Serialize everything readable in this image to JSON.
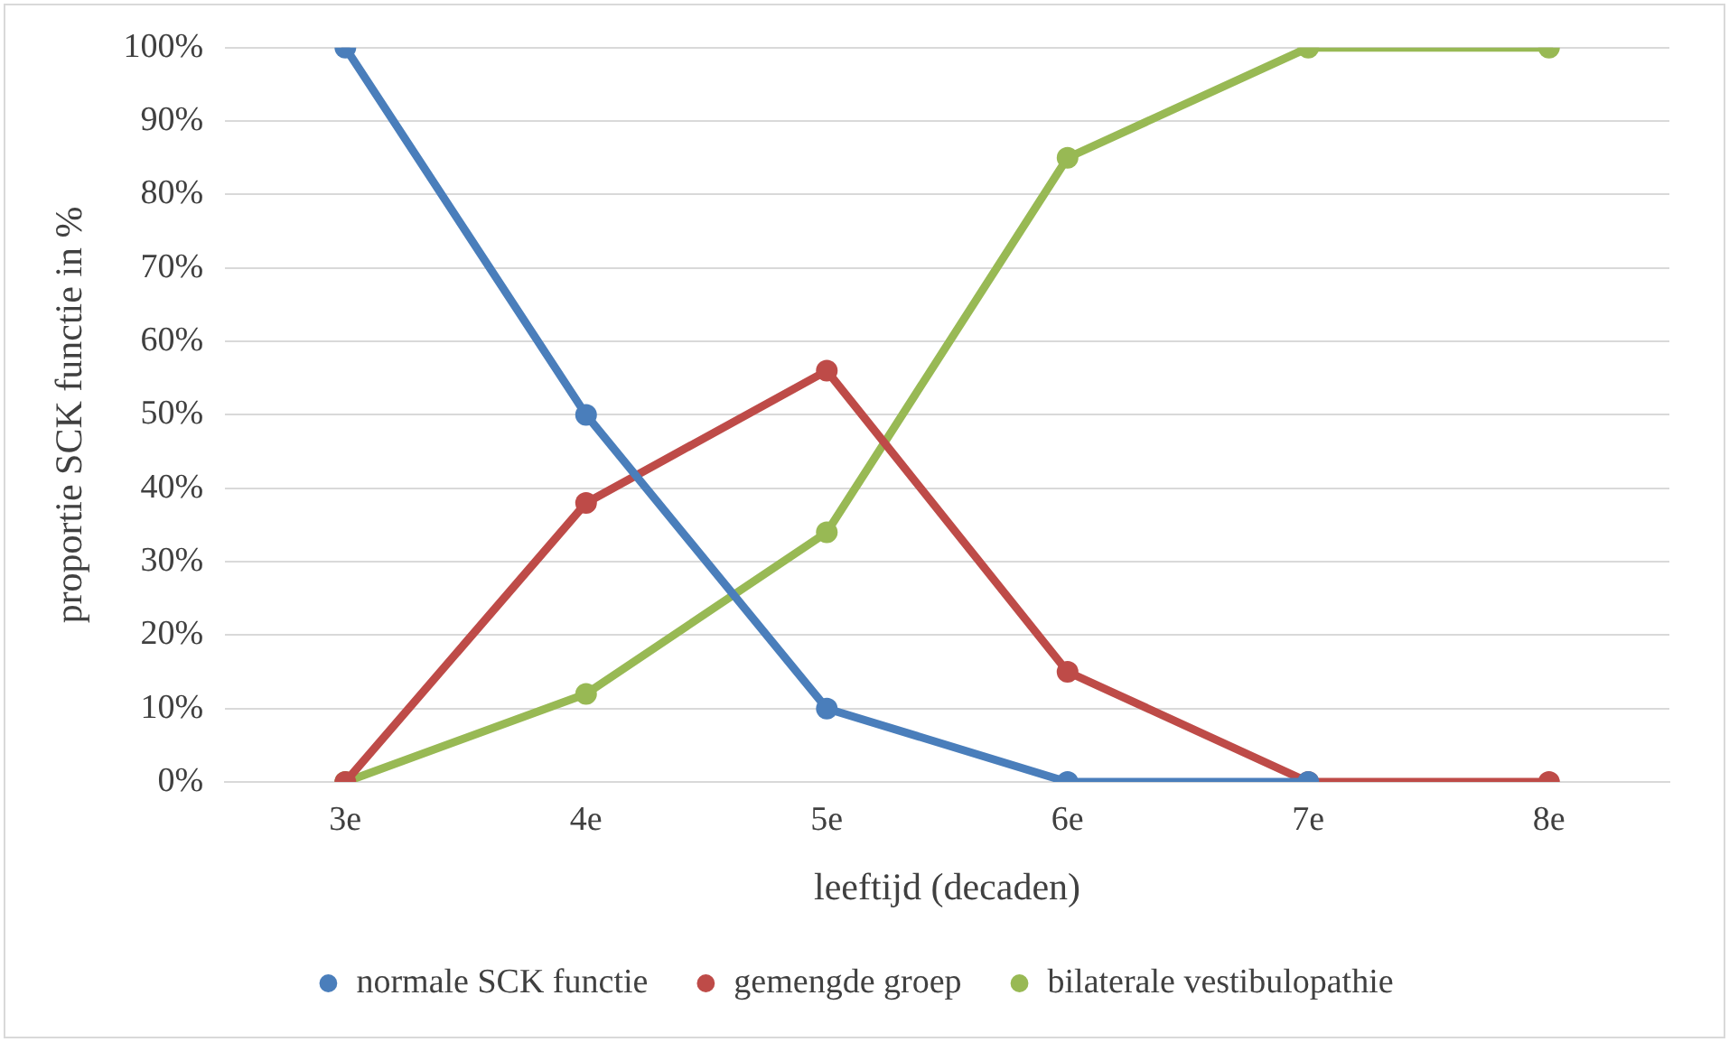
{
  "chart_data": {
    "type": "line",
    "xlabel": "leeftijd (decaden)",
    "ylabel": "proportie SCK functie in %",
    "categories": [
      "3e",
      "4e",
      "5e",
      "6e",
      "7e",
      "8e"
    ],
    "series": [
      {
        "name": "normale SCK functie",
        "color": "#4a7ebb",
        "values": [
          100,
          50,
          10,
          0,
          0,
          null
        ]
      },
      {
        "name": "gemengde groep",
        "color": "#be4b48",
        "values": [
          0,
          38,
          56,
          15,
          0,
          0
        ]
      },
      {
        "name": "bilaterale vestibulopathie",
        "color": "#98b954",
        "values": [
          0,
          12,
          34,
          85,
          100,
          100
        ]
      }
    ],
    "ylim": [
      0,
      100
    ],
    "yticks": [
      {
        "value": 0,
        "label": "0%"
      },
      {
        "value": 10,
        "label": "10%"
      },
      {
        "value": 20,
        "label": "20%"
      },
      {
        "value": 30,
        "label": "30%"
      },
      {
        "value": 40,
        "label": "40%"
      },
      {
        "value": 50,
        "label": "50%"
      },
      {
        "value": 60,
        "label": "60%"
      },
      {
        "value": 70,
        "label": "70%"
      },
      {
        "value": 80,
        "label": "80%"
      },
      {
        "value": 90,
        "label": "90%"
      },
      {
        "value": 100,
        "label": "100%"
      }
    ],
    "grid": "y",
    "legend": "bottom",
    "marker": "circle",
    "line_style": "solid"
  }
}
